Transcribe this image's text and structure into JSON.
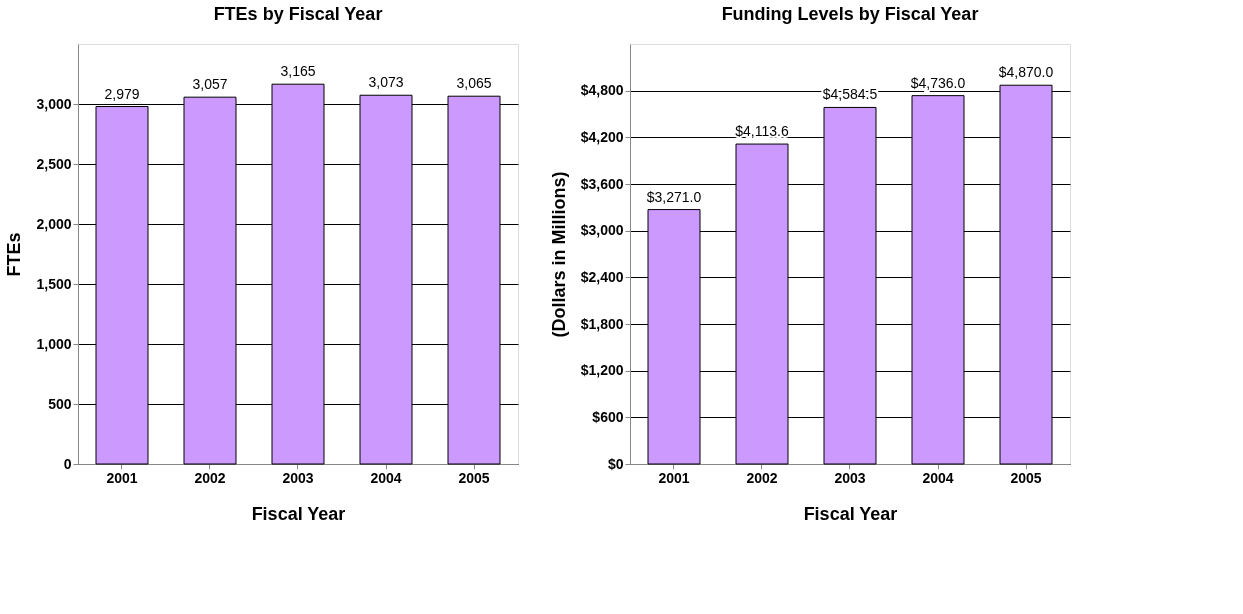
{
  "chart_data": [
    {
      "type": "bar",
      "title": "FTEs by Fiscal Year",
      "xlabel": "Fiscal Year",
      "ylabel": "FTEs",
      "categories": [
        "2001",
        "2002",
        "2003",
        "2004",
        "2005"
      ],
      "values": [
        2979,
        3057,
        3165,
        3073,
        3065
      ],
      "value_labels": [
        "2,979",
        "3,057",
        "3,165",
        "3,073",
        "3,065"
      ],
      "color": "#cc99ff",
      "ylim": [
        0,
        3500
      ],
      "yticks": [
        0,
        500,
        {
          "value": 1000,
          "label": "1,000"
        },
        {
          "value": 1500,
          "label": "1,500"
        },
        {
          "value": 2000,
          "label": "2,000"
        },
        {
          "value": 2500,
          "label": "2,500"
        },
        {
          "value": 3000,
          "label": "3,000"
        }
      ],
      "grid": "y"
    },
    {
      "type": "bar",
      "title": "Funding Levels by Fiscal Year",
      "xlabel": "Fiscal Year",
      "ylabel": "(Dollars in Millions)",
      "categories": [
        "2001",
        "2002",
        "2003",
        "2004",
        "2005"
      ],
      "values": [
        3271.0,
        4113.6,
        4584.5,
        4736.0,
        4870.0
      ],
      "value_labels": [
        "$3,271.0",
        "$4,113.6",
        "$4,584.5",
        "$4,736.0",
        "$4,870.0"
      ],
      "color": "#cc99ff",
      "ylim": [
        0,
        5400
      ],
      "yticks": [
        {
          "value": 0,
          "label": "$0"
        },
        {
          "value": 600,
          "label": "$600"
        },
        {
          "value": 1200,
          "label": "$1,200"
        },
        {
          "value": 1800,
          "label": "$1,800"
        },
        {
          "value": 2400,
          "label": "$2,400"
        },
        {
          "value": 3000,
          "label": "$3,000"
        },
        {
          "value": 3600,
          "label": "$3,600"
        },
        {
          "value": 4200,
          "label": "$4,200"
        },
        {
          "value": 4800,
          "label": "$4,800"
        }
      ],
      "grid": "y"
    }
  ]
}
